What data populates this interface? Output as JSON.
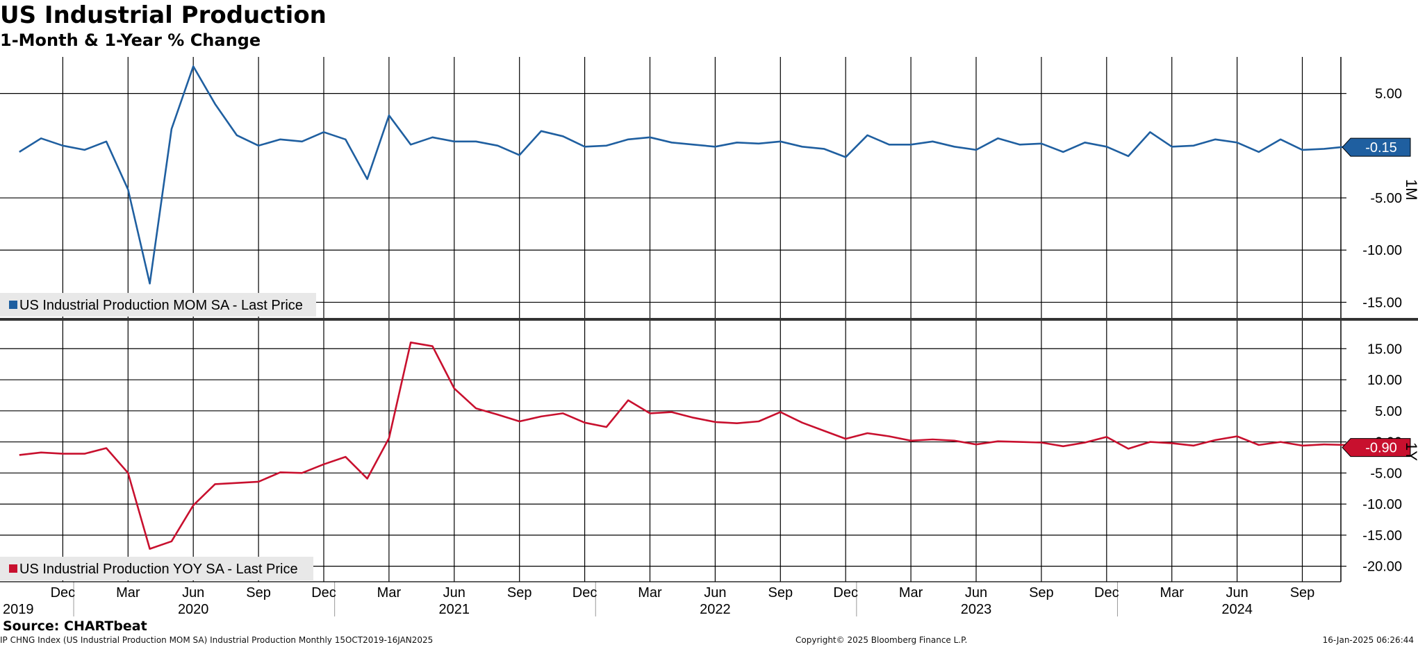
{
  "title": "US Industrial Production",
  "subtitle": "1-Month & 1-Year % Change",
  "source": "Source: CHARTbeat",
  "footer": {
    "left": "IP CHNG Index (US Industrial Production MOM SA) Industrial Production  Monthly 15OCT2019-16JAN2025",
    "center": "Copyright© 2025 Bloomberg Finance L.P.",
    "right": "16-Jan-2025 06:26:44"
  },
  "colors": {
    "mom": "#1f5fa0",
    "yoy": "#c8102e",
    "grid": "#000000",
    "legend_bg": "#e8e8e8"
  },
  "chart_data": [
    {
      "type": "line",
      "panel": "top",
      "axis_label": "1M",
      "ylim": [
        -16.5,
        8.5
      ],
      "y_ticks": [
        5.0,
        -5.0,
        -10.0,
        -15.0
      ],
      "y_tick_labels": [
        "5.00",
        "-5.00",
        "-10.00",
        "-15.00"
      ],
      "last_value_label": "-0.15",
      "last_value": -0.15,
      "series": [
        {
          "name": "US Industrial Production MOM SA - Last Price",
          "x": [
            "2019-10",
            "2019-11",
            "2019-12",
            "2020-01",
            "2020-02",
            "2020-03",
            "2020-04",
            "2020-05",
            "2020-06",
            "2020-07",
            "2020-08",
            "2020-09",
            "2020-10",
            "2020-11",
            "2020-12",
            "2021-01",
            "2021-02",
            "2021-03",
            "2021-04",
            "2021-05",
            "2021-06",
            "2021-07",
            "2021-08",
            "2021-09",
            "2021-10",
            "2021-11",
            "2021-12",
            "2022-01",
            "2022-02",
            "2022-03",
            "2022-04",
            "2022-05",
            "2022-06",
            "2022-07",
            "2022-08",
            "2022-09",
            "2022-10",
            "2022-11",
            "2022-12",
            "2023-01",
            "2023-02",
            "2023-03",
            "2023-04",
            "2023-05",
            "2023-06",
            "2023-07",
            "2023-08",
            "2023-09",
            "2023-10",
            "2023-11",
            "2023-12",
            "2024-01",
            "2024-02",
            "2024-03",
            "2024-04",
            "2024-05",
            "2024-06",
            "2024-07",
            "2024-08",
            "2024-09",
            "2024-10",
            "2024-11",
            "2024-12"
          ],
          "values": [
            -0.6,
            0.7,
            0.0,
            -0.4,
            0.4,
            -4.2,
            -13.2,
            1.6,
            7.6,
            4.0,
            1.0,
            0.0,
            0.6,
            0.4,
            1.3,
            0.6,
            -3.2,
            2.9,
            0.1,
            0.8,
            0.4,
            0.4,
            0.0,
            -0.9,
            1.4,
            0.9,
            -0.1,
            0.0,
            0.6,
            0.8,
            0.3,
            0.1,
            -0.1,
            0.3,
            0.2,
            0.4,
            -0.1,
            -0.3,
            -1.1,
            1.0,
            0.1,
            0.1,
            0.4,
            -0.1,
            -0.4,
            0.7,
            0.1,
            0.2,
            -0.6,
            0.3,
            -0.1,
            -1.0,
            1.3,
            -0.1,
            0.0,
            0.6,
            0.3,
            -0.6,
            0.6,
            -0.4,
            -0.3,
            -0.1,
            -0.15
          ]
        }
      ]
    },
    {
      "type": "line",
      "panel": "bottom",
      "axis_label": "1Y",
      "ylim": [
        -22.5,
        19.5
      ],
      "y_ticks": [
        15.0,
        10.0,
        5.0,
        0.0,
        -5.0,
        -10.0,
        -15.0,
        -20.0
      ],
      "y_tick_labels": [
        "15.00",
        "10.00",
        "5.00",
        "0.00",
        "-5.00",
        "-10.00",
        "-15.00",
        "-20.00"
      ],
      "last_value_label": "-0.90",
      "last_value": -0.9,
      "series": [
        {
          "name": "US Industrial Production YOY SA - Last Price",
          "x": [
            "2019-10",
            "2019-11",
            "2019-12",
            "2020-01",
            "2020-02",
            "2020-03",
            "2020-04",
            "2020-05",
            "2020-06",
            "2020-07",
            "2020-08",
            "2020-09",
            "2020-10",
            "2020-11",
            "2020-12",
            "2021-01",
            "2021-02",
            "2021-03",
            "2021-04",
            "2021-05",
            "2021-06",
            "2021-07",
            "2021-08",
            "2021-09",
            "2021-10",
            "2021-11",
            "2021-12",
            "2022-01",
            "2022-02",
            "2022-03",
            "2022-04",
            "2022-05",
            "2022-06",
            "2022-07",
            "2022-08",
            "2022-09",
            "2022-10",
            "2022-11",
            "2022-12",
            "2023-01",
            "2023-02",
            "2023-03",
            "2023-04",
            "2023-05",
            "2023-06",
            "2023-07",
            "2023-08",
            "2023-09",
            "2023-10",
            "2023-11",
            "2023-12",
            "2024-01",
            "2024-02",
            "2024-03",
            "2024-04",
            "2024-05",
            "2024-06",
            "2024-07",
            "2024-08",
            "2024-09",
            "2024-10",
            "2024-11",
            "2024-12"
          ],
          "values": [
            -2.1,
            -1.7,
            -1.9,
            -1.9,
            -1.0,
            -5.0,
            -17.2,
            -16.0,
            -10.2,
            -6.8,
            -6.6,
            -6.4,
            -4.9,
            -5.0,
            -3.6,
            -2.4,
            -5.9,
            0.6,
            16.0,
            15.4,
            8.6,
            5.4,
            4.4,
            3.3,
            4.1,
            4.6,
            3.1,
            2.4,
            6.7,
            4.6,
            4.8,
            3.9,
            3.2,
            3.0,
            3.3,
            4.8,
            3.1,
            1.8,
            0.5,
            1.4,
            0.9,
            0.2,
            0.4,
            0.2,
            -0.4,
            0.1,
            0.0,
            -0.1,
            -0.7,
            -0.1,
            0.8,
            -1.1,
            0.0,
            -0.2,
            -0.6,
            0.3,
            0.9,
            -0.5,
            0.0,
            -0.6,
            -0.4,
            -0.5,
            -0.9
          ]
        }
      ]
    }
  ],
  "x_axis": {
    "months": [
      {
        "label": "2019",
        "x": "2019-09",
        "year": true
      },
      {
        "label": "Dec",
        "x": "2019-12"
      },
      {
        "label": "Mar",
        "x": "2020-03"
      },
      {
        "label": "Jun",
        "x": "2020-06"
      },
      {
        "label": "2020",
        "x": "2020-06",
        "year": true
      },
      {
        "label": "Sep",
        "x": "2020-09"
      },
      {
        "label": "Dec",
        "x": "2020-12"
      },
      {
        "label": "Mar",
        "x": "2021-03"
      },
      {
        "label": "Jun",
        "x": "2021-06"
      },
      {
        "label": "2021",
        "x": "2021-06",
        "year": true
      },
      {
        "label": "Sep",
        "x": "2021-09"
      },
      {
        "label": "Dec",
        "x": "2021-12"
      },
      {
        "label": "Mar",
        "x": "2022-03"
      },
      {
        "label": "Jun",
        "x": "2022-06"
      },
      {
        "label": "2022",
        "x": "2022-06",
        "year": true
      },
      {
        "label": "Sep",
        "x": "2022-09"
      },
      {
        "label": "Dec",
        "x": "2022-12"
      },
      {
        "label": "Mar",
        "x": "2023-03"
      },
      {
        "label": "Jun",
        "x": "2023-06"
      },
      {
        "label": "2023",
        "x": "2023-06",
        "year": true
      },
      {
        "label": "Sep",
        "x": "2023-09"
      },
      {
        "label": "Dec",
        "x": "2023-12"
      },
      {
        "label": "Mar",
        "x": "2024-03"
      },
      {
        "label": "Jun",
        "x": "2024-06"
      },
      {
        "label": "2024",
        "x": "2024-06",
        "year": true
      },
      {
        "label": "Sep",
        "x": "2024-09"
      }
    ]
  }
}
